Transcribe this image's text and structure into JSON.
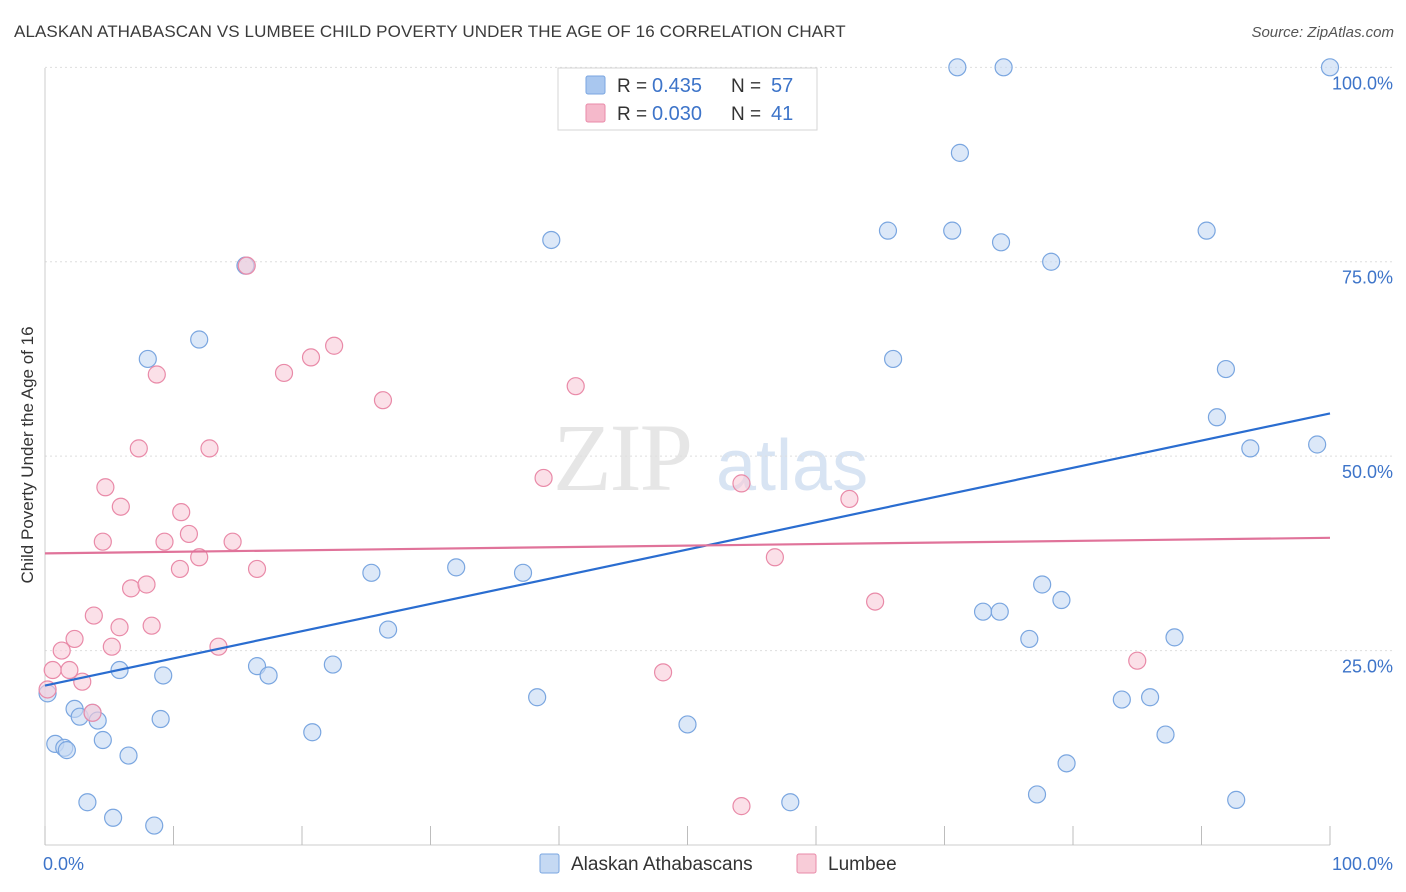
{
  "chart_data": {
    "type": "scatter",
    "title": "ALASKAN ATHABASCAN VS LUMBEE CHILD POVERTY UNDER THE AGE OF 16 CORRELATION CHART",
    "source": "Source: ZipAtlas.com",
    "ylabel": "Child Poverty Under the Age of 16",
    "xlim": [
      0,
      100
    ],
    "ylim": [
      0,
      103
    ],
    "x_tick_labels": [
      "0.0%",
      "100.0%"
    ],
    "y_ticks": [
      {
        "value": 25,
        "label": "25.0%"
      },
      {
        "value": 50,
        "label": "50.0%"
      },
      {
        "value": 75,
        "label": "75.0%"
      },
      {
        "value": 100,
        "label": "100.0%"
      }
    ],
    "grid": true,
    "watermark": {
      "zip": "ZIP",
      "atlas": "atlas"
    },
    "legend_stats": [
      {
        "r_label": "R =",
        "r_value": "0.435",
        "n_label": "N =",
        "n_value": "57",
        "color": "#a9c7ef"
      },
      {
        "r_label": "R =",
        "r_value": "0.030",
        "n_label": "N =",
        "n_value": "41",
        "color": "#f5b9cb"
      }
    ],
    "series": [
      {
        "name": "Alaskan Athabascans",
        "marker_fill": "#c5d9f3",
        "marker_stroke": "#7aa6e0",
        "line_color": "#2a6dd0",
        "trend": [
          [
            0,
            20.5
          ],
          [
            100,
            55.5
          ]
        ],
        "points": [
          [
            0.2,
            19.5
          ],
          [
            0.8,
            13.0
          ],
          [
            1.5,
            12.5
          ],
          [
            1.7,
            12.2
          ],
          [
            2.3,
            17.5
          ],
          [
            2.7,
            16.5
          ],
          [
            3.3,
            5.5
          ],
          [
            3.7,
            17.0
          ],
          [
            4.1,
            16.0
          ],
          [
            4.5,
            13.5
          ],
          [
            5.3,
            3.5
          ],
          [
            5.8,
            22.5
          ],
          [
            6.5,
            11.5
          ],
          [
            8.0,
            62.5
          ],
          [
            8.5,
            2.5
          ],
          [
            9.0,
            16.2
          ],
          [
            9.2,
            21.8
          ],
          [
            12.0,
            65.0
          ],
          [
            15.6,
            74.5
          ],
          [
            16.5,
            23.0
          ],
          [
            17.4,
            21.8
          ],
          [
            20.8,
            14.5
          ],
          [
            22.4,
            23.2
          ],
          [
            25.4,
            35.0
          ],
          [
            26.7,
            27.7
          ],
          [
            32.0,
            35.7
          ],
          [
            37.2,
            35.0
          ],
          [
            38.3,
            19.0
          ],
          [
            39.4,
            77.8
          ],
          [
            50.0,
            15.5
          ],
          [
            58.0,
            5.5
          ],
          [
            65.6,
            79.0
          ],
          [
            66.0,
            62.5
          ],
          [
            70.6,
            79.0
          ],
          [
            71.0,
            100.0
          ],
          [
            71.2,
            89.0
          ],
          [
            73.0,
            30.0
          ],
          [
            74.3,
            30.0
          ],
          [
            74.4,
            77.5
          ],
          [
            74.6,
            100.0
          ],
          [
            76.6,
            26.5
          ],
          [
            77.2,
            6.5
          ],
          [
            77.6,
            33.5
          ],
          [
            78.3,
            75.0
          ],
          [
            79.1,
            31.5
          ],
          [
            79.5,
            10.5
          ],
          [
            83.8,
            18.7
          ],
          [
            86.0,
            19.0
          ],
          [
            87.2,
            14.2
          ],
          [
            87.9,
            26.7
          ],
          [
            90.4,
            79.0
          ],
          [
            91.2,
            55.0
          ],
          [
            91.9,
            61.2
          ],
          [
            92.7,
            5.8
          ],
          [
            93.8,
            51.0
          ],
          [
            99.0,
            51.5
          ],
          [
            100.0,
            100.0
          ]
        ]
      },
      {
        "name": "Lumbee",
        "marker_fill": "#f8ccd8",
        "marker_stroke": "#e98aa8",
        "line_color": "#e0739a",
        "trend": [
          [
            0,
            37.5
          ],
          [
            100,
            39.5
          ]
        ],
        "points": [
          [
            0.2,
            20.0
          ],
          [
            0.6,
            22.5
          ],
          [
            1.3,
            25.0
          ],
          [
            1.9,
            22.5
          ],
          [
            2.3,
            26.5
          ],
          [
            2.9,
            21.0
          ],
          [
            3.7,
            17.0
          ],
          [
            3.8,
            29.5
          ],
          [
            4.5,
            39.0
          ],
          [
            4.7,
            46.0
          ],
          [
            5.2,
            25.5
          ],
          [
            5.8,
            28.0
          ],
          [
            5.9,
            43.5
          ],
          [
            6.7,
            33.0
          ],
          [
            7.3,
            51.0
          ],
          [
            7.9,
            33.5
          ],
          [
            8.3,
            28.2
          ],
          [
            8.7,
            60.5
          ],
          [
            9.3,
            39.0
          ],
          [
            10.5,
            35.5
          ],
          [
            10.6,
            42.8
          ],
          [
            11.2,
            40.0
          ],
          [
            12.0,
            37.0
          ],
          [
            12.8,
            51.0
          ],
          [
            13.5,
            25.5
          ],
          [
            14.6,
            39.0
          ],
          [
            15.7,
            74.5
          ],
          [
            16.5,
            35.5
          ],
          [
            18.6,
            60.7
          ],
          [
            20.7,
            62.7
          ],
          [
            22.5,
            64.2
          ],
          [
            26.3,
            57.2
          ],
          [
            38.8,
            47.2
          ],
          [
            41.3,
            59.0
          ],
          [
            48.1,
            22.2
          ],
          [
            54.2,
            5.0
          ],
          [
            54.2,
            46.5
          ],
          [
            56.8,
            37.0
          ],
          [
            62.6,
            44.5
          ],
          [
            64.6,
            31.3
          ],
          [
            85.0,
            23.7
          ]
        ]
      }
    ]
  }
}
